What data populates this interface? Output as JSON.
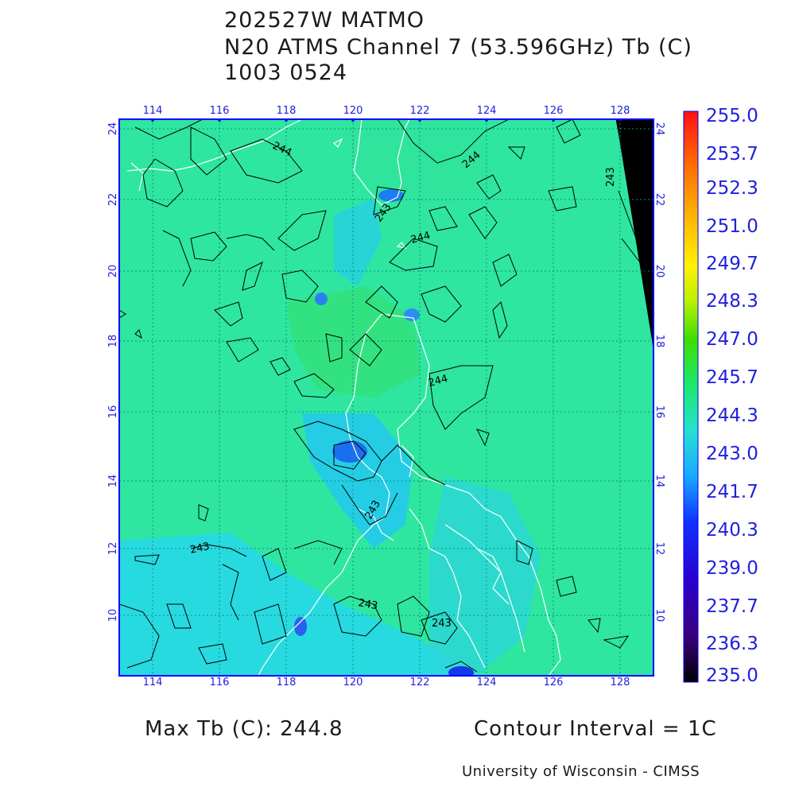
{
  "title": {
    "line1": "202527W MATMO",
    "line2": "N20 ATMS Channel 7 (53.596GHz) Tb (C)",
    "line3": "1003 0524"
  },
  "map": {
    "lon_ticks": [
      "114",
      "116",
      "118",
      "120",
      "122",
      "124",
      "126",
      "128"
    ],
    "lat_ticks": [
      "24",
      "22",
      "20",
      "18",
      "16",
      "14",
      "12",
      "10"
    ],
    "contour_labels": [
      "244",
      "244",
      "243",
      "244",
      "244",
      "243",
      "243",
      "243",
      "243",
      "243"
    ],
    "background_color": "#2ee6a0",
    "frame_color": "#0000ff",
    "grid_color": "#0a8f8f",
    "coast_color": "#ffffff",
    "contour_color": "#000000"
  },
  "colorbar": {
    "labels": [
      "255.0",
      "253.7",
      "252.3",
      "251.0",
      "249.7",
      "248.3",
      "247.0",
      "245.7",
      "244.3",
      "243.0",
      "241.7",
      "240.3",
      "239.0",
      "237.7",
      "236.3",
      "235.0"
    ],
    "colors_top_to_bottom": [
      "#ff1010",
      "#ff6a00",
      "#ffb000",
      "#fff200",
      "#bff000",
      "#3dde00",
      "#1ee86a",
      "#28e0d0",
      "#1aa8ff",
      "#1030ff",
      "#2a00d0",
      "#3a007a",
      "#000000"
    ]
  },
  "footer": {
    "max_tb": "Max Tb (C): 244.8",
    "contour_interval": "Contour Interval = 1C",
    "credit": "University of Wisconsin - CIMSS"
  }
}
